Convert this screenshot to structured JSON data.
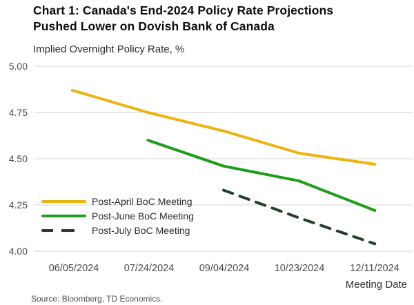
{
  "header": {
    "title_line1": "Chart 1: Canada's End-2024 Policy Rate Projections",
    "title_line2": "Pushed Lower on Dovish Bank of Canada",
    "subtitle": "Implied Overnight Policy Rate, %"
  },
  "footer": {
    "xaxis_title": "Meeting Date",
    "source": "Source: Bloomberg, TD Economics."
  },
  "chart_data": {
    "type": "line",
    "title": "Chart 1: Canada's End-2024 Policy Rate Projections Pushed Lower on Dovish Bank of Canada",
    "subtitle": "Implied Overnight Policy Rate, %",
    "xlabel": "Meeting Date",
    "ylabel": "",
    "categories": [
      "06/05/2024",
      "07/24/2024",
      "09/04/2024",
      "10/23/2024",
      "12/11/2024"
    ],
    "ylim": [
      4.0,
      5.0
    ],
    "yticks": [
      5.0,
      4.75,
      4.5,
      4.25,
      4.0
    ],
    "ytick_labels": [
      "5.00",
      "4.75",
      "4.50",
      "4.25",
      "4.00"
    ],
    "grid": "horizontal-only",
    "legend_position": "inside bottom-left",
    "colors": {
      "gridline": "#e3e3e3"
    },
    "series": [
      {
        "name": "Post-April BoC Meeting",
        "color": "#efb310",
        "style": "solid",
        "start_index": 0,
        "values": [
          4.87,
          4.75,
          4.65,
          4.53,
          4.47
        ]
      },
      {
        "name": "Post-June BoC Meeting",
        "color": "#1c9e1c",
        "style": "solid",
        "start_index": 1,
        "values": [
          4.6,
          4.46,
          4.38,
          4.22
        ]
      },
      {
        "name": "Post-July BoC Meeting",
        "color": "#22402c",
        "style": "dashed",
        "start_index": 2,
        "values": [
          4.33,
          4.18,
          4.04
        ]
      }
    ]
  }
}
